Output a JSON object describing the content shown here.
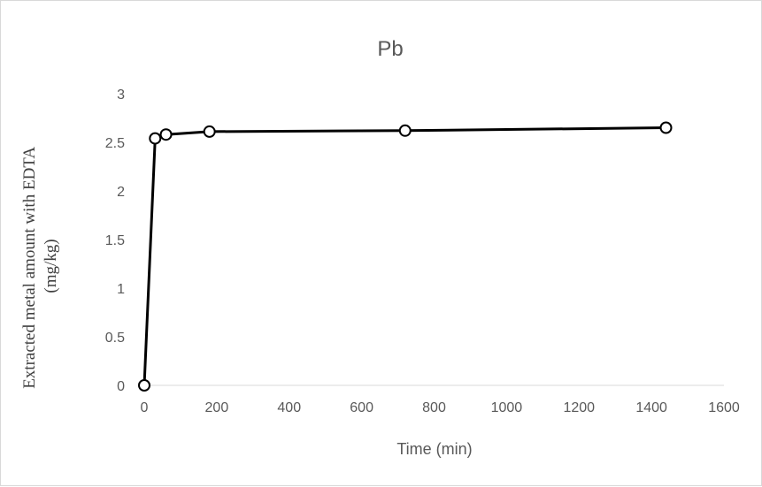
{
  "chart_data": {
    "type": "scatter",
    "title": "Pb",
    "xlabel": "Time (min)",
    "ylabel": [
      "Extracted metal amount with EDTA",
      "(mg/kg)"
    ],
    "xlim": [
      0,
      1600
    ],
    "ylim": [
      0,
      3
    ],
    "x_ticks": [
      "0",
      "200",
      "400",
      "600",
      "800",
      "1000",
      "1200",
      "1400",
      "1600"
    ],
    "y_ticks": [
      "0",
      "0.5",
      "1",
      "1.5",
      "2",
      "2.5",
      "3"
    ],
    "grid": false,
    "legend": "none",
    "line_color": "#000000",
    "marker": "open-circle",
    "series": [
      {
        "x": [
          0,
          30,
          60,
          180,
          720,
          1440
        ],
        "y": [
          0,
          2.54,
          2.58,
          2.61,
          2.62,
          2.65
        ]
      }
    ]
  }
}
